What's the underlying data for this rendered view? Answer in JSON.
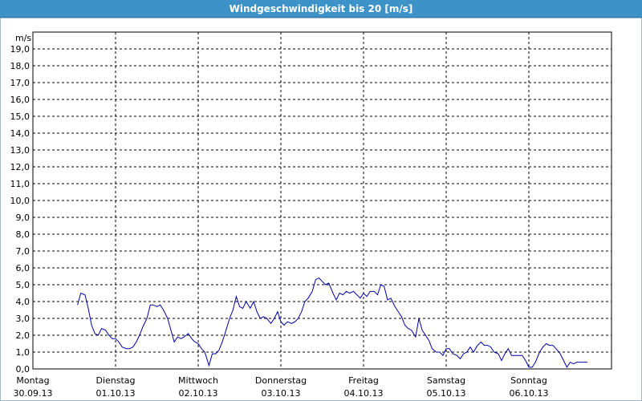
{
  "window": {
    "title": "Windgeschwindigkeit bis 20 [m/s]"
  },
  "chart_data": {
    "type": "line",
    "ylabel": "m/s",
    "ylim": [
      0,
      20
    ],
    "yticks": [
      "0,0",
      "1,0",
      "2,0",
      "3,0",
      "4,0",
      "5,0",
      "6,0",
      "7,0",
      "8,0",
      "9,0",
      "10,0",
      "11,0",
      "12,0",
      "13,0",
      "14,0",
      "15,0",
      "16,0",
      "17,0",
      "18,0",
      "19,0"
    ],
    "xlim": [
      0,
      7
    ],
    "xcategories": [
      {
        "day": "Montag",
        "date": "30.09.13"
      },
      {
        "day": "Dienstag",
        "date": "01.10.13"
      },
      {
        "day": "Mittwoch",
        "date": "02.10.13"
      },
      {
        "day": "Donnerstag",
        "date": "03.10.13"
      },
      {
        "day": "Freitag",
        "date": "04.10.13"
      },
      {
        "day": "Samstag",
        "date": "05.10.13"
      },
      {
        "day": "Sonntag",
        "date": "06.10.13"
      }
    ],
    "grid": true,
    "line_color": "#0000aa",
    "series": [
      {
        "x": [
          0.54,
          0.58,
          0.63,
          0.67,
          0.71,
          0.75,
          0.79,
          0.83,
          0.88,
          0.92,
          0.96,
          1.0,
          1.04,
          1.08,
          1.13,
          1.17,
          1.21,
          1.25,
          1.29,
          1.33,
          1.38,
          1.42,
          1.46,
          1.5,
          1.54,
          1.58,
          1.63,
          1.67,
          1.71,
          1.75,
          1.79,
          1.83,
          1.88,
          1.92,
          1.96,
          2.0,
          2.04,
          2.08,
          2.13,
          2.17,
          2.21,
          2.25,
          2.29,
          2.33,
          2.38,
          2.42,
          2.46,
          2.5,
          2.54,
          2.58,
          2.63,
          2.67,
          2.71,
          2.75,
          2.79,
          2.83,
          2.88,
          2.92,
          2.96,
          3.0,
          3.04,
          3.08,
          3.13,
          3.17,
          3.21,
          3.25,
          3.29,
          3.33,
          3.38,
          3.42,
          3.46,
          3.5,
          3.54,
          3.58,
          3.63,
          3.67,
          3.71,
          3.75,
          3.79,
          3.83,
          3.88,
          3.92,
          3.96,
          4.0,
          4.04,
          4.08,
          4.13,
          4.17,
          4.21,
          4.25,
          4.29,
          4.33,
          4.38,
          4.42,
          4.46,
          4.5,
          4.54,
          4.58,
          4.63,
          4.67,
          4.71,
          4.75,
          4.79,
          4.83,
          4.88,
          4.92,
          4.96,
          5.0,
          5.04,
          5.08,
          5.13,
          5.17,
          5.21,
          5.25,
          5.29,
          5.33,
          5.38,
          5.42,
          5.46,
          5.5,
          5.54,
          5.58,
          5.63,
          5.67,
          5.71,
          5.75,
          5.79,
          5.83,
          5.88,
          5.92,
          5.96,
          6.0,
          6.04,
          6.08,
          6.13,
          6.17,
          6.21,
          6.25,
          6.29,
          6.33,
          6.38,
          6.42,
          6.46,
          6.5,
          6.54,
          6.58,
          6.63,
          6.67,
          6.71
        ],
        "y": [
          3.8,
          4.5,
          4.4,
          3.6,
          2.6,
          2.1,
          2.0,
          2.4,
          2.3,
          2.0,
          1.8,
          1.8,
          1.6,
          1.3,
          1.2,
          1.2,
          1.3,
          1.6,
          2.0,
          2.5,
          3.0,
          3.8,
          3.8,
          3.7,
          3.8,
          3.5,
          3.0,
          2.3,
          1.6,
          1.9,
          1.8,
          1.9,
          2.1,
          1.8,
          1.6,
          1.5,
          1.2,
          1.0,
          0.2,
          0.9,
          0.9,
          1.1,
          1.6,
          2.2,
          3.0,
          3.5,
          4.3,
          3.7,
          3.6,
          4.0,
          3.6,
          4.0,
          3.4,
          3.0,
          3.1,
          3.0,
          2.7,
          3.0,
          3.4,
          2.8,
          2.6,
          2.8,
          2.7,
          2.8,
          3.0,
          3.4,
          4.0,
          4.2,
          4.6,
          5.3,
          5.4,
          5.2,
          5.0,
          5.1,
          4.5,
          4.1,
          4.5,
          4.4,
          4.6,
          4.5,
          4.6,
          4.4,
          4.2,
          4.5,
          4.3,
          4.6,
          4.6,
          4.4,
          5.0,
          4.9,
          4.1,
          4.2,
          3.7,
          3.4,
          3.1,
          2.6,
          2.4,
          2.3,
          1.9,
          3.0,
          2.3,
          2.0,
          1.7,
          1.2,
          1.0,
          1.0,
          0.8,
          1.2,
          1.2,
          0.9,
          0.8,
          0.6,
          0.9,
          1.0,
          1.3,
          1.0,
          1.4,
          1.6,
          1.4,
          1.4,
          1.3,
          1.0,
          0.9,
          0.5,
          0.9,
          1.2,
          0.8,
          0.8,
          0.8,
          0.8,
          0.5,
          0.1,
          0.1,
          0.4,
          1.0,
          1.3,
          1.5,
          1.4,
          1.4,
          1.2,
          0.9,
          0.5,
          0.1,
          0.4,
          0.3,
          0.4,
          0.4,
          0.4,
          0.4
        ]
      }
    ]
  }
}
